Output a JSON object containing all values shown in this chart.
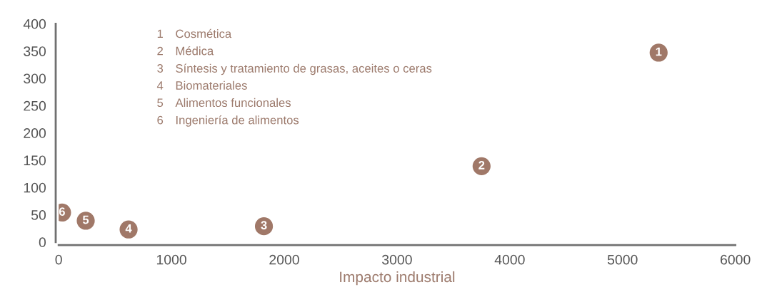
{
  "chart_data": {
    "type": "scatter",
    "xlabel": "Impacto industrial",
    "x": [
      5320,
      3750,
      1820,
      620,
      240,
      30
    ],
    "values": [
      347,
      139,
      29,
      23,
      39,
      54
    ],
    "color": "#a07868",
    "marker": "circle",
    "xlim": [
      0,
      6000
    ],
    "xticks": [
      0,
      1000,
      2000,
      3000,
      4000,
      5000,
      6000
    ],
    "ylim": [
      0,
      400
    ],
    "yticks": [
      0,
      50,
      100,
      150,
      200,
      250,
      300,
      350,
      400
    ],
    "grid": false,
    "legend": false,
    "annotations": [
      {
        "text": "1",
        "x": 5320,
        "y": 347
      },
      {
        "text": "2",
        "x": 3750,
        "y": 139
      },
      {
        "text": "3",
        "x": 1820,
        "y": 29
      },
      {
        "text": "4",
        "x": 620,
        "y": 23
      },
      {
        "text": "5",
        "x": 240,
        "y": 39
      },
      {
        "text": "6",
        "x": 30,
        "y": 54
      },
      "1 Cosmética",
      "2 Médica",
      "3 Síntesis y tratamiento de grasas, aceites o ceras",
      "4 Biomateriales",
      "5 Alimentos funcionales",
      "6 Ingeniería de alimentos"
    ]
  }
}
